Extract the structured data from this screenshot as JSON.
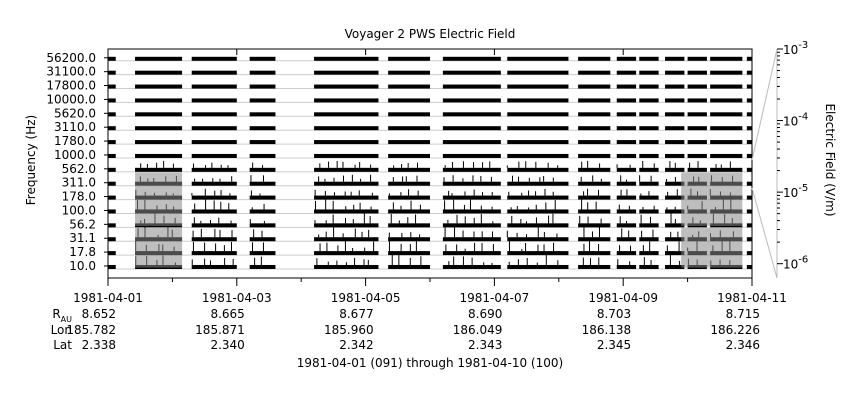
{
  "chart_data": {
    "type": "heatmap",
    "title": "Voyager 2 PWS Electric Field",
    "ylabel": "Frequency (Hz)",
    "colorbar_label": "Electric Field (V/m)",
    "colorbar_scale": "log",
    "colorbar_ticks": [
      {
        "mantissa": "10",
        "exp": "-3",
        "value": 0.001
      },
      {
        "mantissa": "10",
        "exp": "-4",
        "value": 0.0001
      },
      {
        "mantissa": "10",
        "exp": "-5",
        "value": 1e-05
      },
      {
        "mantissa": "10",
        "exp": "-6",
        "value": 1e-06
      }
    ],
    "frequency_channels": [
      "56200.0",
      "31100.0",
      "17800.0",
      "10000.0",
      "5620.0",
      "3110.0",
      "1780.0",
      "1000.0",
      "562.0",
      "311.0",
      "178.0",
      "100.0",
      "56.2",
      "31.1",
      "17.8",
      "10.0"
    ],
    "x_dates": [
      "1981-04-01",
      "1981-04-03",
      "1981-04-05",
      "1981-04-07",
      "1981-04-09",
      "1981-04-11"
    ],
    "x_range_days": [
      0,
      10
    ],
    "data_segments_days": [
      [
        0.0,
        0.12
      ],
      [
        0.42,
        1.15
      ],
      [
        1.3,
        2.0
      ],
      [
        2.2,
        2.6
      ],
      [
        3.2,
        4.2
      ],
      [
        4.35,
        5.0
      ],
      [
        5.2,
        6.1
      ],
      [
        6.2,
        7.15
      ],
      [
        7.3,
        7.8
      ],
      [
        7.9,
        8.2
      ],
      [
        8.25,
        8.55
      ],
      [
        8.65,
        8.95
      ],
      [
        9.0,
        9.3
      ],
      [
        9.35,
        9.85
      ],
      [
        9.92,
        10.0
      ]
    ],
    "ephemeris": {
      "row_labels": {
        "r_main": "R",
        "r_sub": "AU",
        "lon": "Lon",
        "lat": "Lat"
      },
      "R_AU": [
        "8.652",
        "8.665",
        "8.677",
        "8.690",
        "8.703",
        "8.715"
      ],
      "Lon": [
        "185.782",
        "185.871",
        "185.960",
        "186.049",
        "186.138",
        "186.226"
      ],
      "Lat": [
        "2.338",
        "2.340",
        "2.342",
        "2.343",
        "2.345",
        "2.346"
      ]
    },
    "footer": "1981-04-01 (091) through 1981-04-10 (100)",
    "colors": {
      "data": "#000000",
      "mid": "#888888",
      "line": "#cccccc",
      "axis": "#000000"
    }
  }
}
